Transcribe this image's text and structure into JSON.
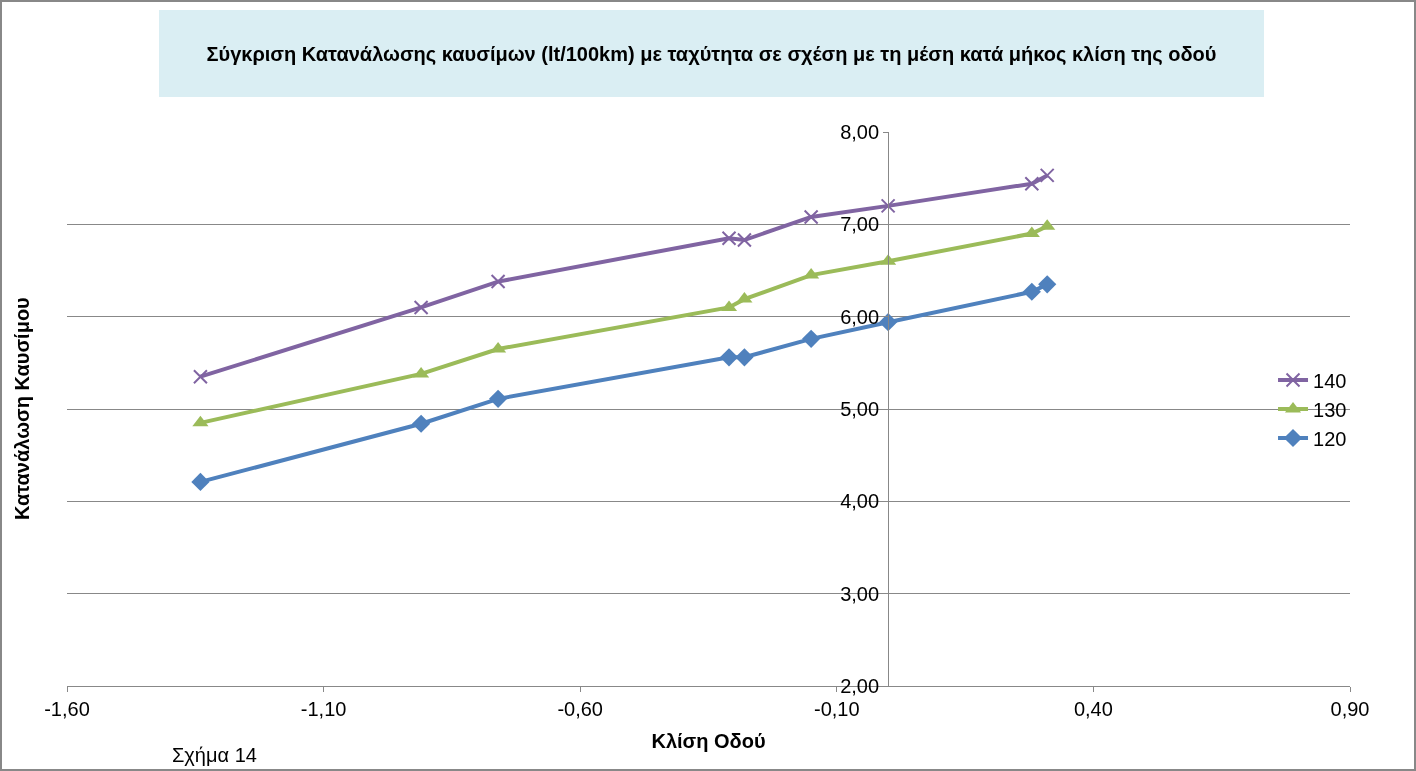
{
  "chart_data": {
    "type": "line",
    "title": "Σύγκριση Κατανάλωσης καυσίμων (lt/100km) με ταχύτητα σε σχέση με τη μέση κατά μήκος κλίση της οδού",
    "xlabel": "Κλίση Οδού",
    "ylabel": "Κατανάλωση Καυσίμου",
    "annotations": [
      "Σχήμα 14"
    ],
    "x": [
      -1.34,
      -0.91,
      -0.76,
      -0.31,
      -0.28,
      -0.15,
      0.0,
      0.28,
      0.31
    ],
    "series": [
      {
        "name": "140",
        "color": "#8064a2",
        "marker": "cross",
        "values": [
          5.35,
          6.1,
          6.38,
          6.85,
          6.83,
          7.08,
          7.2,
          7.44,
          7.53
        ]
      },
      {
        "name": "130",
        "color": "#9bbb59",
        "marker": "triangle",
        "values": [
          4.85,
          5.38,
          5.65,
          6.1,
          6.19,
          6.45,
          6.6,
          6.9,
          6.98
        ]
      },
      {
        "name": "120",
        "color": "#4f81bd",
        "marker": "diamond",
        "values": [
          4.21,
          4.84,
          5.11,
          5.56,
          5.56,
          5.76,
          5.94,
          6.27,
          6.35
        ]
      }
    ],
    "xlim": [
      -1.6,
      0.9
    ],
    "xticks": [
      {
        "value": -1.6,
        "label": "-1,60"
      },
      {
        "value": -1.1,
        "label": "-1,10"
      },
      {
        "value": -0.6,
        "label": "-0,60"
      },
      {
        "value": -0.1,
        "label": "-0,10"
      },
      {
        "value": 0.4,
        "label": "0,40"
      },
      {
        "value": 0.9,
        "label": "0,90"
      }
    ],
    "ylim": [
      2,
      8
    ],
    "yticks": [
      {
        "value": 2,
        "label": "2,00"
      },
      {
        "value": 3,
        "label": "3,00"
      },
      {
        "value": 4,
        "label": "4,00"
      },
      {
        "value": 5,
        "label": "5,00"
      },
      {
        "value": 6,
        "label": "6,00"
      },
      {
        "value": 7,
        "label": "7,00"
      },
      {
        "value": 8,
        "label": "8,00"
      }
    ],
    "grid": "y",
    "legend": "right",
    "line_style": "solid"
  }
}
